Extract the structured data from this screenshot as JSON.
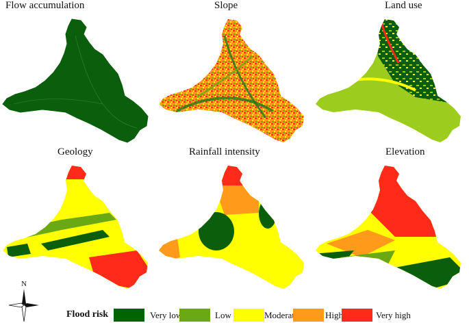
{
  "panels": [
    {
      "title": "Flow accumulation"
    },
    {
      "title": "Slope"
    },
    {
      "title": "Land use"
    },
    {
      "title": "Geology"
    },
    {
      "title": "Rainfall intensity"
    },
    {
      "title": "Elevation"
    }
  ],
  "compass": {
    "north": "N"
  },
  "legend": {
    "title": "Flood risk",
    "classes": [
      {
        "label": "Very low",
        "color": "#006400"
      },
      {
        "label": "Low",
        "color": "#6aa814"
      },
      {
        "label": "Moderate",
        "color": "#ffff00"
      },
      {
        "label": "High",
        "color": "#ff9a1a"
      },
      {
        "label": "Very high",
        "color": "#ff2a1a"
      }
    ]
  }
}
